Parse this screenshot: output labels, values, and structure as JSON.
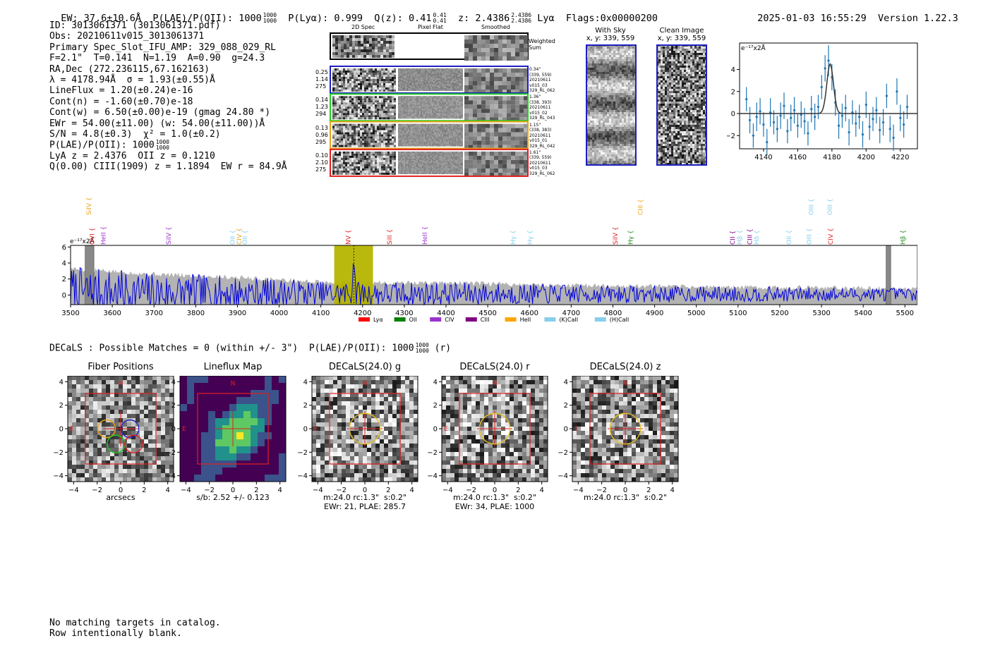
{
  "header": {
    "ew": "EW: 37.6±10.6Å",
    "plae_label": "P(LAE)/P(OII): 1000",
    "plae_frac": [
      "1000",
      "1000"
    ],
    "plya": "P(Lyα): 0.999",
    "qz_label": "Q(z): 0.41",
    "qz_frac": [
      "0.41",
      "0.41"
    ],
    "z_label": "z: 2.4386",
    "z_frac": [
      "2.4386",
      "2.4386"
    ],
    "line": "Lyα",
    "flags": "Flags:0x00000200",
    "timestamp": "2025-01-03 16:55:29",
    "version": "Version 1.22.3"
  },
  "info": {
    "id": "ID: 3013061371 (3013061371.pdf)",
    "obs": "Obs: 20210611v015_3013061371",
    "spec": "Primary Spec_Slot_IFU_AMP: 329_088_029_RL",
    "params": "F=2.1\"  T=0.141  N=1.19  A=0.90  g=24.3",
    "radec": "RA,Dec (272.236115,67.162163)",
    "lambda": "λ = 4178.94Å  σ = 1.93(±0.55)Å",
    "lineflux": "LineFlux = 1.20(±0.24)e-16",
    "contn": "Cont(n) = -1.60(±0.70)e-18",
    "contw": "Cont(w) = 6.50(±0.00)e-19 (gmag 24.80 *)",
    "ewr": "EWr = 54.00(±11.00) (w: 54.00(±11.00))Å",
    "sn": "S/N = 4.8(±0.3)  χ² = 1.0(±0.2)",
    "plae_label": "P(LAE)/P(OII): 1000",
    "plae_frac": [
      "1000",
      "1000"
    ],
    "lya": "LyA z = 2.4376  OII z = 0.1210",
    "q": "Q(0.00) CIII(1909) z = 1.1894  EW r = 84.9Å"
  },
  "cutouts": {
    "col_labels": [
      "2D Spec",
      "Pixel Flat",
      "Smoothed"
    ],
    "weighted_label": [
      "Weighted",
      "Sum"
    ],
    "rows": [
      {
        "left": [
          "0.25",
          "1.14",
          "275"
        ],
        "right": [
          "0.34\"",
          "(339, 559)",
          "20210611",
          "v015_03",
          "329_RL_062"
        ],
        "color": "#1f1fbf"
      },
      {
        "left": [
          "0.14",
          "1.23",
          "294"
        ],
        "right": [
          "1.36\"",
          "(338, 393)",
          "20210611",
          "v015_02",
          "329_RL_043"
        ],
        "color": "#22cc22"
      },
      {
        "left": [
          "0.13",
          "0.96",
          "295"
        ],
        "right": [
          "1.15\"",
          "(338, 383)",
          "20210611",
          "v015_01",
          "329_RL_042"
        ],
        "color": "#e8a317"
      },
      {
        "left": [
          "0.10",
          "2.10",
          "275"
        ],
        "right": [
          "1.61\"",
          "(339, 559)",
          "20210611",
          "v015_03",
          "329_RL_062"
        ],
        "color": "#e02020"
      }
    ],
    "with_sky": [
      "With Sky",
      "x, y: 339, 559"
    ],
    "clean": [
      "Clean Image",
      "x, y: 339, 559"
    ]
  },
  "zoom_plot": {
    "ylabel": "e⁻¹⁷x2Å",
    "x_ticks": [
      "4140",
      "4160",
      "4180",
      "4200",
      "4220"
    ],
    "y_ticks": [
      "4",
      "2",
      "0",
      "−2"
    ]
  },
  "full_spectrum": {
    "ylabel": "e⁻¹⁷x2Å",
    "x_ticks": [
      "3500",
      "3600",
      "3700",
      "3800",
      "3900",
      "4000",
      "4100",
      "4200",
      "4300",
      "4400",
      "4500",
      "4600",
      "4700",
      "4800",
      "4900",
      "5000",
      "5100",
      "5200",
      "5300",
      "5400",
      "5500"
    ],
    "y_ticks": [
      "6",
      "4",
      "2",
      "0"
    ],
    "line_labels": [
      {
        "name": "SiIV",
        "x": 3544,
        "row": "high",
        "color": "#e8a317"
      },
      {
        "name": "OVI",
        "x": 3552,
        "row": "low",
        "color": "#e02020"
      },
      {
        "name": "HeII",
        "x": 3579,
        "row": "low",
        "color": "#9932cc"
      },
      {
        "name": "SiIV",
        "x": 3735,
        "row": "low",
        "color": "#9932cc"
      },
      {
        "name": "OII",
        "x": 3888,
        "row": "low",
        "color": "#87ceeb"
      },
      {
        "name": "CIV",
        "x": 3904,
        "row": "low",
        "color": "#e8a317"
      },
      {
        "name": "OII",
        "x": 3918,
        "row": "low",
        "color": "#87ceeb"
      },
      {
        "name": "NV",
        "x": 4166,
        "row": "low",
        "color": "#e02020"
      },
      {
        "name": "SiII",
        "x": 4265,
        "row": "low",
        "color": "#e02020"
      },
      {
        "name": "HeII",
        "x": 4349,
        "row": "low",
        "color": "#9932cc"
      },
      {
        "name": "Hγ",
        "x": 4561,
        "row": "low",
        "color": "#87ceeb"
      },
      {
        "name": "Hγ",
        "x": 4601,
        "row": "low",
        "color": "#87ceeb"
      },
      {
        "name": "SiIV",
        "x": 4806,
        "row": "low",
        "color": "#e02020"
      },
      {
        "name": "Hγ",
        "x": 4842,
        "row": "low",
        "color": "#228b22"
      },
      {
        "name": "CIII",
        "x": 4866,
        "row": "high",
        "color": "#e8a317"
      },
      {
        "name": "CII",
        "x": 5087,
        "row": "low",
        "color": "#8b008b"
      },
      {
        "name": "Hβ",
        "x": 5104,
        "row": "low",
        "color": "#87ceeb"
      },
      {
        "name": "CIII",
        "x": 5128,
        "row": "low",
        "color": "#8b008b"
      },
      {
        "name": "Hδ",
        "x": 5144,
        "row": "low",
        "color": "#87ceeb"
      },
      {
        "name": "OII",
        "x": 5222,
        "row": "low",
        "color": "#87ceeb"
      },
      {
        "name": "OIII",
        "x": 5270,
        "row": "low",
        "color": "#87ceeb"
      },
      {
        "name": "OIII",
        "x": 5275,
        "row": "high",
        "color": "#87ceeb"
      },
      {
        "name": "OIII",
        "x": 5320,
        "row": "high",
        "color": "#87ceeb"
      },
      {
        "name": "CIV",
        "x": 5322,
        "row": "low",
        "color": "#e02020"
      },
      {
        "name": "Hβ",
        "x": 5495,
        "row": "low",
        "color": "#228b22"
      }
    ],
    "legend": [
      {
        "name": "Lyα",
        "color": "#ff0000"
      },
      {
        "name": "OII",
        "color": "#008000"
      },
      {
        "name": "CIV",
        "color": "#9932cc"
      },
      {
        "name": "CIII",
        "color": "#800080"
      },
      {
        "name": "HeII",
        "color": "#ffa500"
      },
      {
        "name": "(K)CaII",
        "color": "#87ceeb"
      },
      {
        "name": "(H)CaII",
        "color": "#87ceeb"
      }
    ]
  },
  "decals_line": {
    "text": "DECaLS : Possible Matches = 0 (within +/- 3\")  P(LAE)/P(OII): 1000",
    "frac": [
      "1000",
      "1000"
    ],
    "suffix": "(r)"
  },
  "imaging": [
    {
      "title": "Fiber Positions",
      "caption": [
        "arcsecs"
      ],
      "kind": "fiber"
    },
    {
      "title": "Lineflux Map",
      "caption": [
        "s/b: 2.52 +/- 0.123"
      ],
      "kind": "lineflux"
    },
    {
      "title": "DECaLS(24.0) g",
      "caption": [
        "m:24.0 rc:1.3\"  s:0.2\"",
        "EWr: 21, PLAE: 285.7"
      ],
      "kind": "decals"
    },
    {
      "title": "DECaLS(24.0) r",
      "caption": [
        "m:24.0 rc:1.3\"  s:0.2\"",
        "EWr: 34, PLAE: 1000"
      ],
      "kind": "decals"
    },
    {
      "title": "DECaLS(24.0) z",
      "caption": [
        "m:24.0 rc:1.3\"  s:0.2\""
      ],
      "kind": "decals"
    }
  ],
  "imaging_axes": {
    "x_ticks": [
      "−4",
      "−2",
      "0",
      "2",
      "4"
    ],
    "y_ticks": [
      "4",
      "2",
      "0",
      "−2",
      "−4"
    ],
    "north": "N",
    "east": "E"
  },
  "chart_data": [
    {
      "type": "scatter",
      "title": "",
      "xlabel": "",
      "ylabel": "e-17x2Å",
      "xlim": [
        4126,
        4230
      ],
      "ylim": [
        -3.2,
        6.4
      ],
      "points": [
        {
          "x": 4130,
          "y": 1.3,
          "err": 1.1
        },
        {
          "x": 4132,
          "y": -0.6,
          "err": 1.2
        },
        {
          "x": 4134,
          "y": -2.0,
          "err": 1.1
        },
        {
          "x": 4136,
          "y": -0.3,
          "err": 1.3
        },
        {
          "x": 4138,
          "y": 0.2,
          "err": 1.2
        },
        {
          "x": 4140,
          "y": -1.0,
          "err": 1.1
        },
        {
          "x": 4142,
          "y": -2.6,
          "err": 1.2
        },
        {
          "x": 4144,
          "y": 0.1,
          "err": 1.3
        },
        {
          "x": 4146,
          "y": -0.8,
          "err": 1.1
        },
        {
          "x": 4148,
          "y": -1.4,
          "err": 1.2
        },
        {
          "x": 4150,
          "y": -0.2,
          "err": 1.2
        },
        {
          "x": 4152,
          "y": 0.7,
          "err": 1.2
        },
        {
          "x": 4154,
          "y": -1.6,
          "err": 1.1
        },
        {
          "x": 4156,
          "y": -0.4,
          "err": 1.2
        },
        {
          "x": 4158,
          "y": 0.3,
          "err": 1.2
        },
        {
          "x": 4160,
          "y": -1.1,
          "err": 1.1
        },
        {
          "x": 4162,
          "y": -0.1,
          "err": 1.2
        },
        {
          "x": 4164,
          "y": -0.7,
          "err": 1.2
        },
        {
          "x": 4166,
          "y": -1.8,
          "err": 1.1
        },
        {
          "x": 4168,
          "y": 0.4,
          "err": 1.2
        },
        {
          "x": 4170,
          "y": -0.3,
          "err": 1.2
        },
        {
          "x": 4172,
          "y": 0.6,
          "err": 1.1
        },
        {
          "x": 4174,
          "y": 2.4,
          "err": 1.1
        },
        {
          "x": 4176,
          "y": 4.1,
          "err": 1.2
        },
        {
          "x": 4178,
          "y": 4.8,
          "err": 1.4
        },
        {
          "x": 4180,
          "y": 3.3,
          "err": 1.2
        },
        {
          "x": 4182,
          "y": 1.0,
          "err": 1.2
        },
        {
          "x": 4184,
          "y": -1.1,
          "err": 1.2
        },
        {
          "x": 4186,
          "y": -0.2,
          "err": 1.1
        },
        {
          "x": 4188,
          "y": 0.5,
          "err": 1.2
        },
        {
          "x": 4190,
          "y": -1.7,
          "err": 1.2
        },
        {
          "x": 4192,
          "y": 0.1,
          "err": 1.1
        },
        {
          "x": 4194,
          "y": -0.9,
          "err": 1.2
        },
        {
          "x": 4196,
          "y": -0.3,
          "err": 1.1
        },
        {
          "x": 4198,
          "y": -1.9,
          "err": 1.2
        },
        {
          "x": 4200,
          "y": 0.8,
          "err": 1.2
        },
        {
          "x": 4202,
          "y": -1.2,
          "err": 1.2
        },
        {
          "x": 4204,
          "y": -0.5,
          "err": 1.1
        },
        {
          "x": 4206,
          "y": 0.3,
          "err": 1.2
        },
        {
          "x": 4208,
          "y": -1.5,
          "err": 1.2
        },
        {
          "x": 4210,
          "y": -0.8,
          "err": 1.2
        },
        {
          "x": 4212,
          "y": 1.6,
          "err": 1.1
        },
        {
          "x": 4214,
          "y": -1.4,
          "err": 1.2
        },
        {
          "x": 4216,
          "y": -2.2,
          "err": 1.2
        },
        {
          "x": 4218,
          "y": 2.0,
          "err": 1.2
        },
        {
          "x": 4220,
          "y": -0.4,
          "err": 1.2
        },
        {
          "x": 4222,
          "y": -1.0,
          "err": 1.2
        },
        {
          "x": 4224,
          "y": 0.6,
          "err": 1.1
        }
      ],
      "fit": {
        "type": "gaussian",
        "center": 4178.94,
        "sigma": 1.93,
        "amplitude": 4.5,
        "baseline": 0
      }
    },
    {
      "type": "line",
      "title": "",
      "xlabel": "",
      "ylabel": "e-17x2Å",
      "xlim": [
        3500,
        5530
      ],
      "ylim": [
        -1.2,
        6.2
      ],
      "series": [
        {
          "name": "spectrum",
          "color": "#0000dd",
          "x_start": 3500,
          "x_end": 5530,
          "seed": 7
        },
        {
          "name": "noise",
          "color": "#b3b3b3",
          "levels": [
            [
              3500,
              3.3
            ],
            [
              3700,
              2.6
            ],
            [
              3900,
              2.2
            ],
            [
              4100,
              1.6
            ],
            [
              4400,
              1.5
            ],
            [
              4700,
              1.2
            ],
            [
              5000,
              1.0
            ],
            [
              5300,
              0.9
            ],
            [
              5530,
              0.8
            ]
          ]
        }
      ],
      "highlight_bands": [
        {
          "x0": 4132,
          "x1": 4225,
          "color": "#b5b500"
        }
      ],
      "gray_bands": [
        {
          "x0": 3535,
          "x1": 3556
        },
        {
          "x0": 5455,
          "x1": 5466
        }
      ],
      "peak_x": 4178.9
    }
  ]
}
